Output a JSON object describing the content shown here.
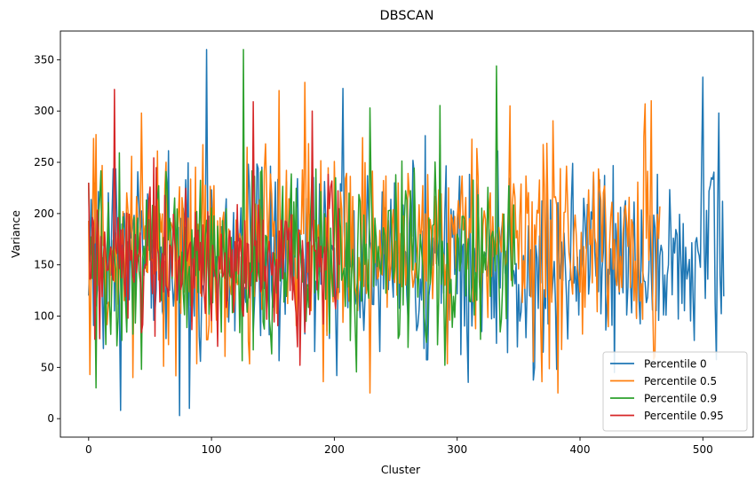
{
  "chart_data": {
    "type": "line",
    "title": "DBSCAN",
    "xlabel": "Cluster",
    "ylabel": "Variance",
    "xlim": [
      -23,
      541
    ],
    "ylim": [
      -18,
      378
    ],
    "xticks": [
      0,
      100,
      200,
      300,
      400,
      500
    ],
    "yticks": [
      0,
      50,
      100,
      150,
      200,
      250,
      300,
      350
    ],
    "grid": false,
    "legend_position": "lower-right",
    "series": [
      {
        "name": "Percentile 0",
        "color": "#1f77b4",
        "n_points": 518,
        "summary": {
          "min": 3,
          "max": 360,
          "typical_low": 90,
          "typical_high": 230
        },
        "anchors": [
          [
            0,
            120
          ],
          [
            26,
            8
          ],
          [
            74,
            3
          ],
          [
            82,
            10
          ],
          [
            96,
            360
          ],
          [
            202,
            42
          ],
          [
            207,
            322
          ],
          [
            381,
            48
          ],
          [
            428,
            45
          ],
          [
            472,
            150
          ],
          [
            500,
            333
          ],
          [
            507,
            235
          ],
          [
            513,
            298
          ],
          [
            516,
            212
          ]
        ]
      },
      {
        "name": "Percentile 0.5",
        "color": "#ff7f0e",
        "n_points": 466,
        "summary": {
          "min": 25,
          "max": 328,
          "typical_low": 90,
          "typical_high": 240
        },
        "anchors": [
          [
            0,
            193
          ],
          [
            1,
            43
          ],
          [
            6,
            277
          ],
          [
            36,
            40
          ],
          [
            43,
            298
          ],
          [
            155,
            320
          ],
          [
            176,
            328
          ],
          [
            191,
            36
          ],
          [
            229,
            25
          ],
          [
            343,
            305
          ],
          [
            369,
            36
          ],
          [
            453,
            307
          ],
          [
            458,
            310
          ],
          [
            465,
            207
          ]
        ]
      },
      {
        "name": "Percentile 0.9",
        "color": "#2ca02c",
        "n_points": 348,
        "summary": {
          "min": 30,
          "max": 360,
          "typical_low": 90,
          "typical_high": 220
        },
        "anchors": [
          [
            0,
            230
          ],
          [
            6,
            30
          ],
          [
            43,
            48
          ],
          [
            126,
            360
          ],
          [
            229,
            303
          ],
          [
            290,
            52
          ],
          [
            332,
            344
          ],
          [
            347,
            150
          ]
        ]
      },
      {
        "name": "Percentile 0.95",
        "color": "#d62728",
        "n_points": 205,
        "summary": {
          "min": 52,
          "max": 321,
          "typical_low": 100,
          "typical_high": 200
        },
        "anchors": [
          [
            0,
            230
          ],
          [
            9,
            78
          ],
          [
            21,
            321
          ],
          [
            130,
            170
          ],
          [
            134,
            309
          ],
          [
            172,
            52
          ],
          [
            182,
            300
          ],
          [
            204,
            150
          ]
        ]
      }
    ]
  }
}
